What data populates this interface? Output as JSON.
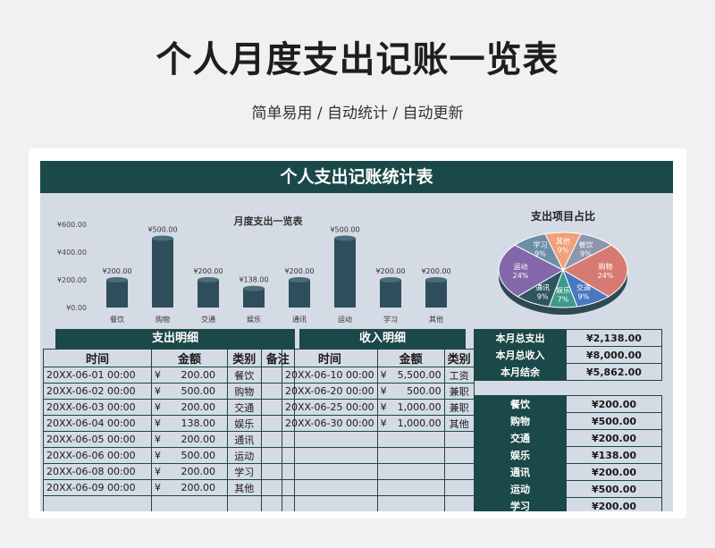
{
  "page": {
    "title": "个人月度支出记账一览表",
    "subtitle": "简单易用 / 自动统计 / 自动更新"
  },
  "sheet": {
    "banner": "个人支出记账统计表"
  },
  "colors": {
    "header": "#1b4848",
    "bar": "#2f4e5c",
    "sheet_bg": "#d5dbe4"
  },
  "chart_data": [
    {
      "type": "bar",
      "title": "月度支出一览表",
      "categories": [
        "餐饮",
        "购物",
        "交通",
        "娱乐",
        "通讯",
        "运动",
        "学习",
        "其他"
      ],
      "values": [
        200,
        500,
        200,
        138,
        200,
        500,
        200,
        200
      ],
      "value_labels": [
        "¥200.00",
        "¥500.00",
        "¥200.00",
        "¥138.00",
        "¥200.00",
        "¥500.00",
        "¥200.00",
        "¥200.00"
      ],
      "ytick_labels": [
        "¥600.00",
        "¥400.00",
        "¥200.00",
        "¥0.00"
      ],
      "ylim": [
        0,
        600
      ]
    },
    {
      "type": "pie",
      "title": "支出项目占比",
      "slices": [
        {
          "label": "其他",
          "pct": "9%",
          "value": 9,
          "color": "#f0a07a"
        },
        {
          "label": "餐饮",
          "pct": "9%",
          "value": 9,
          "color": "#8c97ae"
        },
        {
          "label": "购物",
          "pct": "24%",
          "value": 24,
          "color": "#d77b72"
        },
        {
          "label": "交通",
          "pct": "9%",
          "value": 9,
          "color": "#4a78c0"
        },
        {
          "label": "娱乐",
          "pct": "7%",
          "value": 7,
          "color": "#3c9b8b"
        },
        {
          "label": "通讯",
          "pct": "9%",
          "value": 9,
          "color": "#2e5560"
        },
        {
          "label": "运动",
          "pct": "24%",
          "value": 24,
          "color": "#8467a8"
        },
        {
          "label": "学习",
          "pct": "9%",
          "value": 9,
          "color": "#6e8ea8"
        }
      ]
    }
  ],
  "expense": {
    "header": "支出明细",
    "columns": [
      "时间",
      "金额",
      "类别",
      "备注"
    ],
    "rows": [
      {
        "time": "20XX-06-01 00:00",
        "yen": "¥",
        "amount": "200.00",
        "category": "餐饮",
        "note": ""
      },
      {
        "time": "20XX-06-02 00:00",
        "yen": "¥",
        "amount": "500.00",
        "category": "购物",
        "note": ""
      },
      {
        "time": "20XX-06-03 00:00",
        "yen": "¥",
        "amount": "200.00",
        "category": "交通",
        "note": ""
      },
      {
        "time": "20XX-06-04 00:00",
        "yen": "¥",
        "amount": "138.00",
        "category": "娱乐",
        "note": ""
      },
      {
        "time": "20XX-06-05 00:00",
        "yen": "¥",
        "amount": "200.00",
        "category": "通讯",
        "note": ""
      },
      {
        "time": "20XX-06-06 00:00",
        "yen": "¥",
        "amount": "500.00",
        "category": "运动",
        "note": ""
      },
      {
        "time": "20XX-06-08 00:00",
        "yen": "¥",
        "amount": "200.00",
        "category": "学习",
        "note": ""
      },
      {
        "time": "20XX-06-09 00:00",
        "yen": "¥",
        "amount": "200.00",
        "category": "其他",
        "note": ""
      }
    ]
  },
  "income": {
    "header": "收入明细",
    "columns": [
      "时间",
      "金额",
      "类别"
    ],
    "rows": [
      {
        "time": "20XX-06-10 00:00",
        "yen": "¥",
        "amount": "5,500.00",
        "category": "工资"
      },
      {
        "time": "20XX-06-20 00:00",
        "yen": "¥",
        "amount": "500.00",
        "category": "兼职"
      },
      {
        "time": "20XX-06-25 00:00",
        "yen": "¥",
        "amount": "1,000.00",
        "category": "兼职"
      },
      {
        "time": "20XX-06-30 00:00",
        "yen": "¥",
        "amount": "1,000.00",
        "category": "其他"
      }
    ]
  },
  "summary": [
    {
      "label": "本月总支出",
      "value": "¥2,138.00"
    },
    {
      "label": "本月总收入",
      "value": "¥8,000.00"
    },
    {
      "label": "本月结余",
      "value": "¥5,862.00"
    }
  ],
  "category_totals": [
    {
      "label": "餐饮",
      "value": "¥200.00"
    },
    {
      "label": "购物",
      "value": "¥500.00"
    },
    {
      "label": "交通",
      "value": "¥200.00"
    },
    {
      "label": "娱乐",
      "value": "¥138.00"
    },
    {
      "label": "通讯",
      "value": "¥200.00"
    },
    {
      "label": "运动",
      "value": "¥500.00"
    },
    {
      "label": "学习",
      "value": "¥200.00"
    }
  ]
}
